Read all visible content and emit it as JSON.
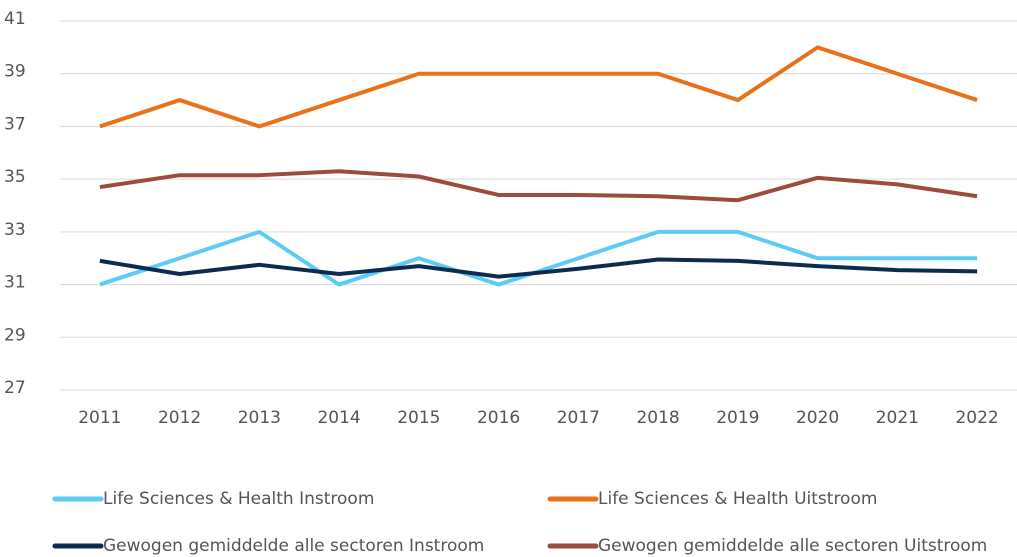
{
  "chart_data": {
    "type": "line",
    "categories": [
      "2011",
      "2012",
      "2013",
      "2014",
      "2015",
      "2016",
      "2017",
      "2018",
      "2019",
      "2020",
      "2021",
      "2022"
    ],
    "series": [
      {
        "name": "Life Sciences & Health Instroom",
        "color": "#5ccbf5",
        "values": [
          31,
          32,
          33,
          31,
          32,
          31,
          32,
          33,
          33,
          32,
          32,
          32
        ]
      },
      {
        "name": "Life Sciences & Health Uitstroom",
        "color": "#e8711a",
        "values": [
          37,
          38,
          37,
          38,
          39,
          39,
          39,
          39,
          38,
          40,
          39,
          38
        ]
      },
      {
        "name": "Gewogen gemiddelde alle sectoren Instroom",
        "color": "#0c2b4e",
        "values": [
          31.9,
          31.4,
          31.75,
          31.4,
          31.7,
          31.3,
          31.6,
          31.95,
          31.9,
          31.7,
          31.55,
          31.5
        ]
      },
      {
        "name": "Gewogen gemiddelde alle sectoren Uitstroom",
        "color": "#9e4a3c",
        "values": [
          34.7,
          35.15,
          35.15,
          35.3,
          35.1,
          34.4,
          34.4,
          34.35,
          34.2,
          35.05,
          34.8,
          34.35
        ]
      }
    ],
    "ylim": [
      27,
      41
    ],
    "yticks": [
      27,
      29,
      31,
      33,
      35,
      37,
      39,
      41
    ],
    "grid": true,
    "legend": "bottom"
  }
}
